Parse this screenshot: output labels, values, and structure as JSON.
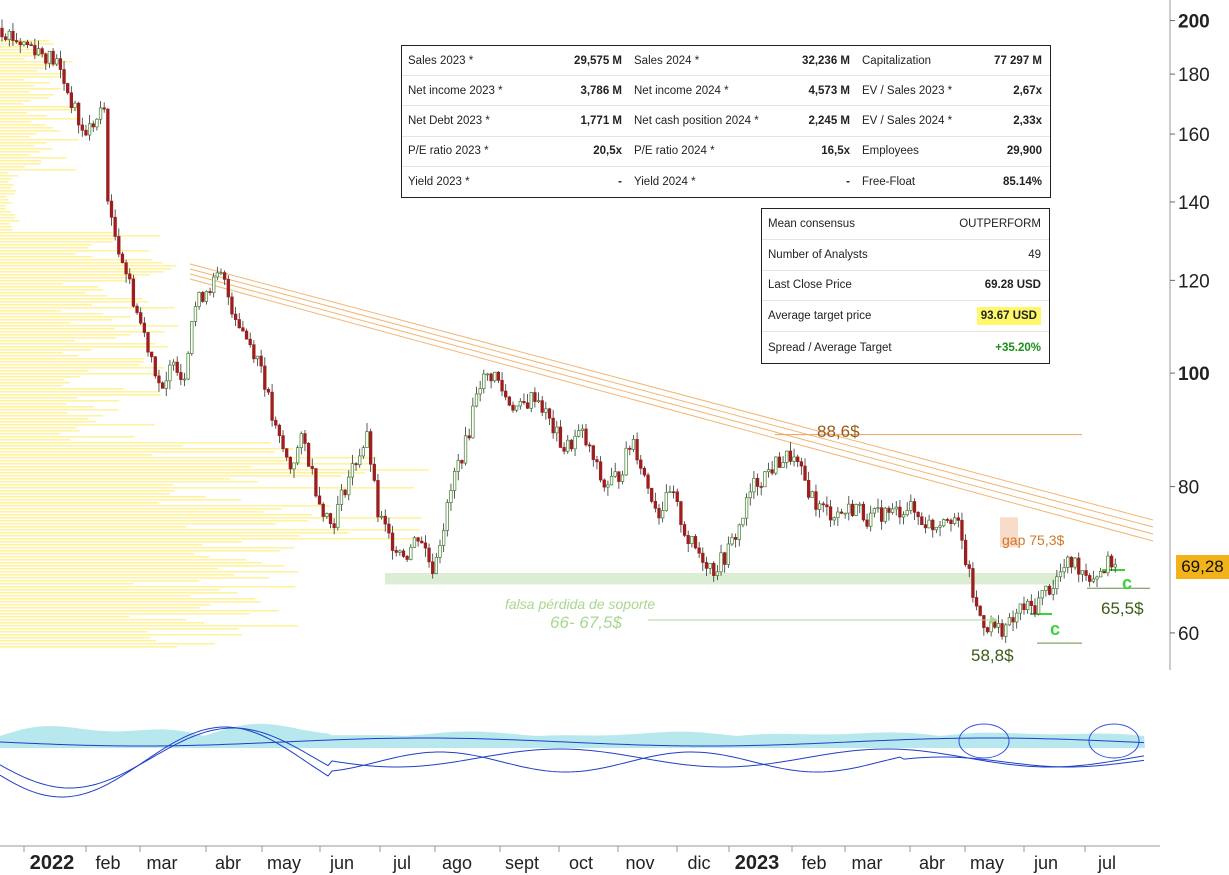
{
  "chart_data": {
    "type": "candlestick",
    "price_axis": {
      "ticks": [
        60,
        80,
        100,
        120,
        140,
        160,
        180,
        200
      ],
      "scale": "log",
      "range": [
        56,
        205
      ]
    },
    "time_axis": [
      "2022",
      "feb",
      "mar",
      "abr",
      "may",
      "jun",
      "jul",
      "ago",
      "sept",
      "oct",
      "nov",
      "dic",
      "2023",
      "feb",
      "mar",
      "abr",
      "may",
      "jun",
      "jul"
    ],
    "last_price_label": "69,28",
    "price_path": [
      [
        0,
        197
      ],
      [
        0.5,
        192
      ],
      [
        1,
        190
      ],
      [
        1.7,
        184
      ],
      [
        2.1,
        172
      ],
      [
        2.5,
        160
      ],
      [
        3.0,
        165
      ],
      [
        3.15,
        170
      ],
      [
        3.3,
        136
      ],
      [
        3.7,
        126
      ],
      [
        4.2,
        112
      ],
      [
        4.6,
        104
      ],
      [
        5.0,
        95
      ],
      [
        5.3,
        104
      ],
      [
        5.6,
        98
      ],
      [
        5.9,
        113
      ],
      [
        6.3,
        118
      ],
      [
        6.8,
        121
      ],
      [
        7.1,
        114
      ],
      [
        7.5,
        108
      ],
      [
        8.0,
        102
      ],
      [
        8.4,
        90
      ],
      [
        8.9,
        83
      ],
      [
        9.3,
        88
      ],
      [
        9.8,
        78
      ],
      [
        10.2,
        74
      ],
      [
        10.6,
        80
      ],
      [
        11.0,
        85
      ],
      [
        11.3,
        88
      ],
      [
        11.6,
        76
      ],
      [
        12.0,
        72
      ],
      [
        12.5,
        70
      ],
      [
        12.9,
        73
      ],
      [
        13.3,
        68
      ],
      [
        13.7,
        75
      ],
      [
        14.0,
        82
      ],
      [
        14.4,
        88
      ],
      [
        14.7,
        98
      ],
      [
        15.2,
        100
      ],
      [
        15.6,
        95
      ],
      [
        16.0,
        93
      ],
      [
        16.5,
        96
      ],
      [
        17.0,
        90
      ],
      [
        17.4,
        86
      ],
      [
        17.9,
        89
      ],
      [
        18.3,
        84
      ],
      [
        18.6,
        80
      ],
      [
        19.1,
        82
      ],
      [
        19.5,
        88
      ],
      [
        19.9,
        81
      ],
      [
        20.3,
        76
      ],
      [
        20.7,
        79
      ],
      [
        21.2,
        72
      ],
      [
        21.6,
        70
      ],
      [
        22.0,
        68
      ],
      [
        22.4,
        70
      ],
      [
        22.8,
        74
      ],
      [
        23.2,
        80
      ],
      [
        23.6,
        82
      ],
      [
        24.0,
        84
      ],
      [
        24.4,
        85
      ],
      [
        24.8,
        81
      ],
      [
        25.2,
        77
      ],
      [
        25.6,
        76
      ],
      [
        26.0,
        76
      ],
      [
        26.4,
        77
      ],
      [
        26.8,
        75
      ],
      [
        27.2,
        76
      ],
      [
        27.6,
        76
      ],
      [
        28.0,
        77
      ],
      [
        28.4,
        75
      ],
      [
        28.8,
        74
      ],
      [
        29.2,
        76
      ],
      [
        29.5,
        75
      ],
      [
        29.8,
        69
      ],
      [
        30.1,
        63
      ],
      [
        30.4,
        61
      ],
      [
        30.8,
        60.5
      ],
      [
        31.2,
        61
      ],
      [
        31.5,
        63
      ],
      [
        31.9,
        63
      ],
      [
        32.2,
        65
      ],
      [
        32.5,
        66
      ],
      [
        32.8,
        68
      ],
      [
        33.1,
        69
      ],
      [
        33.4,
        68
      ],
      [
        33.7,
        67
      ],
      [
        34.0,
        68
      ],
      [
        34.3,
        69
      ],
      [
        34.5,
        69.28
      ]
    ],
    "trendline": {
      "from": [
        5.5,
        125
      ],
      "to": [
        33.4,
        79
      ],
      "parallel_offsets": [
        0,
        1,
        2,
        3
      ]
    },
    "lines": [
      {
        "label": "88,6$",
        "value": 88.6,
        "x_from": 23.0,
        "x_to": 32.0,
        "color": "#e8a060"
      },
      {
        "label": "58,8$",
        "value": 58.8,
        "x_from": 30.4,
        "x_to": 32.2,
        "color": "#6a8a40"
      },
      {
        "label": "65,5$",
        "value": 65.5,
        "x_from": 32.5,
        "x_to": 34.2,
        "color": "#6a8a40"
      }
    ],
    "support_zone": {
      "from": 66,
      "to": 67.5,
      "label": "falsa pérdida de soporte",
      "sublabel": "66- 67,5$"
    },
    "gap": {
      "label": "gap 75,3$",
      "from": 71,
      "to": 75.3
    },
    "markers": [
      "c",
      "c"
    ]
  },
  "fundamentals": {
    "rows": [
      [
        {
          "l": "Sales 2023 *",
          "v": "29,575 M"
        },
        {
          "l": "Sales 2024 *",
          "v": "32,236 M"
        },
        {
          "l": "Capitalization",
          "v": "77 297 M"
        }
      ],
      [
        {
          "l": "Net income 2023 *",
          "v": "3,786 M"
        },
        {
          "l": "Net income 2024 *",
          "v": "4,573 M"
        },
        {
          "l": "EV / Sales 2023 *",
          "v": "2,67x"
        }
      ],
      [
        {
          "l": "Net Debt 2023 *",
          "v": "1,771 M"
        },
        {
          "l": "Net cash position 2024 *",
          "v": "2,245 M"
        },
        {
          "l": "EV / Sales 2024 *",
          "v": "2,33x"
        }
      ],
      [
        {
          "l": "P/E ratio 2023 *",
          "v": "20,5x"
        },
        {
          "l": "P/E ratio 2024 *",
          "v": "16,5x"
        },
        {
          "l": "Employees",
          "v": "29,900"
        }
      ],
      [
        {
          "l": "Yield 2023 *",
          "v": "-"
        },
        {
          "l": "Yield 2024 *",
          "v": "-"
        },
        {
          "l": "Free-Float",
          "v": "85.14%"
        }
      ]
    ]
  },
  "consensus": {
    "rows": [
      {
        "l": "Mean consensus",
        "v": "OUTPERFORM"
      },
      {
        "l": "Number of Analysts",
        "v": "49"
      },
      {
        "l": "Last Close Price",
        "v": "69.28 USD"
      },
      {
        "l": "Average target price",
        "v": "93.67 USD"
      },
      {
        "l": "Spread / Average Target",
        "v": "+35.20%"
      }
    ]
  },
  "colors": {
    "candle_up": "#3c7d2a",
    "candle_down": "#9c1f1f",
    "trendline": "#f2b673",
    "support_zone": "#cfe8c4",
    "volume_profile": "#fff3a0",
    "oscillator_line": "#1f3fc8",
    "oscillator_fill": "#9fe0e8",
    "last_price_bg": "#f2b21a"
  }
}
